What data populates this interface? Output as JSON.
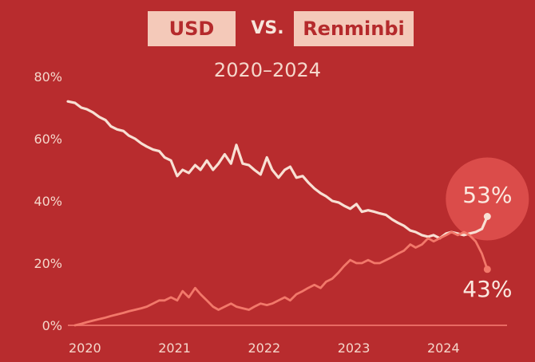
{
  "title": {
    "left": "USD",
    "vs": "VS.",
    "right": "Renminbi"
  },
  "subtitle": "2020–2024",
  "colors": {
    "background": "#b82c2e",
    "usd_line": "#f8e0d4",
    "rmb_line": "#f2786a",
    "axis": "#e86a63",
    "text": "#f5d7cb",
    "title_pill": "#f4c9b9"
  },
  "chart_data": {
    "type": "line",
    "title": "USD VS. Renminbi",
    "subtitle": "2020–2024",
    "xlabel": "",
    "ylabel": "",
    "xlim": [
      2019.85,
      2024.75
    ],
    "ylim": [
      0,
      80
    ],
    "grid": false,
    "x_ticks": [
      "2020",
      "2021",
      "2022",
      "2023",
      "2024"
    ],
    "y_ticks": [
      "0%",
      "20%",
      "40%",
      "60%",
      "80%"
    ],
    "series": [
      {
        "name": "USD",
        "x": [
          2019.85,
          2019.93,
          2020.0,
          2020.06,
          2020.13,
          2020.2,
          2020.27,
          2020.33,
          2020.4,
          2020.47,
          2020.53,
          2020.6,
          2020.67,
          2020.73,
          2020.8,
          2020.87,
          2020.93,
          2021.0,
          2021.07,
          2021.13,
          2021.2,
          2021.27,
          2021.33,
          2021.4,
          2021.47,
          2021.53,
          2021.6,
          2021.67,
          2021.73,
          2021.8,
          2021.87,
          2021.93,
          2022.0,
          2022.07,
          2022.13,
          2022.2,
          2022.27,
          2022.33,
          2022.4,
          2022.47,
          2022.53,
          2022.6,
          2022.67,
          2022.73,
          2022.8,
          2022.87,
          2022.93,
          2023.0,
          2023.07,
          2023.13,
          2023.2,
          2023.27,
          2023.33,
          2023.4,
          2023.47,
          2023.53,
          2023.6,
          2023.67,
          2023.73,
          2023.8,
          2023.87,
          2023.93,
          2024.0,
          2024.07,
          2024.13,
          2024.2,
          2024.27,
          2024.33,
          2024.4,
          2024.47,
          2024.53
        ],
        "values": [
          72,
          71.5,
          70,
          69.5,
          68.5,
          67,
          66,
          64,
          63,
          62.5,
          61,
          60,
          58.5,
          57.5,
          56.5,
          56,
          54,
          53,
          48,
          50,
          49,
          51.5,
          50,
          53,
          50,
          52,
          55,
          52,
          58,
          52,
          51.5,
          50,
          48.5,
          54,
          50,
          47.5,
          50,
          51,
          47.5,
          48,
          46,
          44,
          42.5,
          41.5,
          40,
          39.5,
          38.5,
          37.5,
          39,
          36.5,
          37,
          36.5,
          36,
          35.5,
          34,
          33,
          32,
          30.5,
          30,
          29,
          28.5,
          29,
          28,
          29.5,
          30,
          29.5,
          29,
          29.5,
          30,
          31,
          35
        ]
      },
      {
        "name": "Renminbi",
        "x": [
          2019.93,
          2020.0,
          2020.06,
          2020.13,
          2020.2,
          2020.27,
          2020.33,
          2020.4,
          2020.47,
          2020.53,
          2020.6,
          2020.67,
          2020.73,
          2020.8,
          2020.87,
          2020.93,
          2021.0,
          2021.07,
          2021.13,
          2021.2,
          2021.27,
          2021.33,
          2021.4,
          2021.47,
          2021.53,
          2021.6,
          2021.67,
          2021.73,
          2021.8,
          2021.87,
          2021.93,
          2022.0,
          2022.07,
          2022.13,
          2022.2,
          2022.27,
          2022.33,
          2022.4,
          2022.47,
          2022.53,
          2022.6,
          2022.67,
          2022.73,
          2022.8,
          2022.87,
          2022.93,
          2023.0,
          2023.07,
          2023.13,
          2023.2,
          2023.27,
          2023.33,
          2023.4,
          2023.47,
          2023.53,
          2023.6,
          2023.67,
          2023.73,
          2023.8,
          2023.87,
          2023.93,
          2024.0,
          2024.07,
          2024.13,
          2024.2,
          2024.27,
          2024.33,
          2024.4,
          2024.47,
          2024.53
        ],
        "values": [
          0,
          0.5,
          1,
          1.5,
          2,
          2.5,
          3,
          3.5,
          4,
          4.5,
          5,
          5.5,
          6,
          7,
          8,
          8,
          9,
          8,
          11,
          9,
          12,
          10,
          8,
          6,
          5,
          6,
          7,
          6,
          5.5,
          5,
          6,
          7,
          6.5,
          7,
          8,
          9,
          8,
          10,
          11,
          12,
          13,
          12,
          14,
          15,
          17,
          19,
          21,
          20,
          20,
          21,
          20,
          20,
          21,
          22,
          23,
          24,
          26,
          25,
          26,
          28,
          27,
          28,
          29,
          30,
          29,
          30,
          29,
          27,
          23,
          18
        ]
      }
    ],
    "annotations": [
      {
        "series": "USD",
        "text": "53%"
      },
      {
        "series": "Renminbi",
        "text": "43%"
      }
    ]
  }
}
